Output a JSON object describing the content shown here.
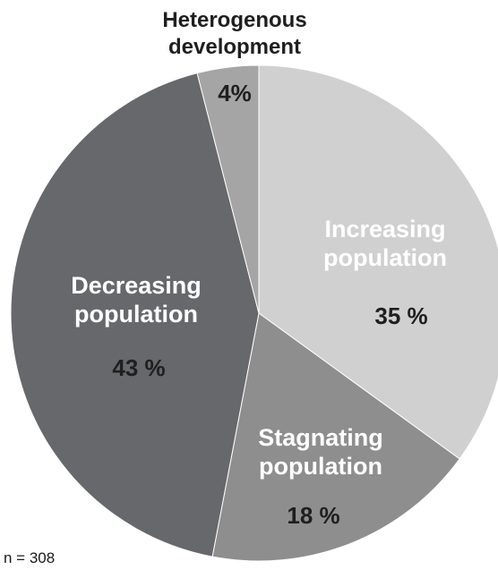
{
  "chart_data": {
    "type": "pie",
    "title": "",
    "start_angle_deg": 0,
    "direction": "clockwise",
    "slices": [
      {
        "label_lines": [
          "Increasing",
          "population"
        ],
        "value": 35,
        "value_label": "35 %",
        "color": "#d0d0d0",
        "label_color": "#ffffff",
        "value_color": "#1f1f1f"
      },
      {
        "label_lines": [
          "Stagnating",
          "population"
        ],
        "value": 18,
        "value_label": "18 %",
        "color": "#8e8e8e",
        "label_color": "#ffffff",
        "value_color": "#1f1f1f"
      },
      {
        "label_lines": [
          "Decreasing",
          "population"
        ],
        "value": 43,
        "value_label": "43 %",
        "color": "#66686b",
        "label_color": "#ffffff",
        "value_color": "#1f1f1f"
      },
      {
        "label_lines": [
          "Heterogenous",
          "development"
        ],
        "value": 4,
        "value_label": "4%",
        "color": "#a5a5a5",
        "label_color": "#1f1f1f",
        "value_color": "#1f1f1f"
      }
    ]
  },
  "footnote": "n = 308"
}
